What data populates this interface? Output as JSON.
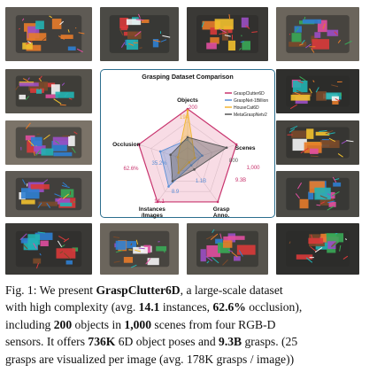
{
  "radar": {
    "title": "Grasping Dataset Comparison",
    "axes": [
      "Objects",
      "Scenes",
      "Grasp\nAnno.",
      "Instances\n/Images",
      "Occlusion"
    ],
    "legend": [
      {
        "name": "GraspClutter6D",
        "color": "#c8346e"
      },
      {
        "name": "GraspNet-1Billion",
        "color": "#5b8fd6"
      },
      {
        "name": "HouseCat6D",
        "color": "#f2b632"
      },
      {
        "name": "MetaGraspNetv2",
        "color": "#555555"
      }
    ],
    "value_labels": [
      {
        "text": "200",
        "color": "#c8346e"
      },
      {
        "text": "194",
        "color": "#f2b632"
      },
      {
        "text": "1,000",
        "color": "#c8346e"
      },
      {
        "text": "800",
        "color": "#555555"
      },
      {
        "text": "1.1B",
        "color": "#5b8fd6"
      },
      {
        "text": "9.3B",
        "color": "#c8346e"
      },
      {
        "text": "14.1",
        "color": "#c8346e"
      },
      {
        "text": "8.9",
        "color": "#5b8fd6"
      },
      {
        "text": "62.6%",
        "color": "#c8346e"
      },
      {
        "text": "35.2%",
        "color": "#5b8fd6"
      }
    ]
  },
  "chart_data": {
    "type": "radar",
    "title": "Grasping Dataset Comparison",
    "axes": [
      "Objects",
      "Scenes",
      "Grasp Anno.",
      "Instances /Images",
      "Occlusion"
    ],
    "series": [
      {
        "name": "GraspClutter6D",
        "values": [
          1.0,
          1.0,
          1.0,
          1.0,
          1.0
        ]
      },
      {
        "name": "GraspNet-1Billion",
        "values": [
          0.4,
          0.3,
          0.12,
          0.63,
          0.56
        ]
      },
      {
        "name": "HouseCat6D",
        "values": [
          0.97,
          0.15,
          0.05,
          0.3,
          0.2
        ]
      },
      {
        "name": "MetaGraspNetv2",
        "values": [
          0.45,
          0.8,
          0.22,
          0.5,
          0.35
        ]
      }
    ]
  },
  "caption": {
    "l1a": "Fig. 1: We present ",
    "l1b": "GraspClutter6D",
    "l1c": ", a large-scale dataset",
    "l2a": "with high complexity (avg. ",
    "l2b": "14.1",
    "l2c": " instances, ",
    "l2d": "62.6%",
    "l2e": " occlusion),",
    "l3a": "including ",
    "l3b": "200",
    "l3c": " objects in ",
    "l3d": "1,000",
    "l3e": " scenes from four RGB-D",
    "l4a": "sensors. It offers ",
    "l4b": "736K",
    "l4c": " 6D object poses and ",
    "l4d": "9.3B",
    "l4e": " grasps. (25",
    "l5": "grasps are visualized per image (avg. 178K grasps / image))"
  }
}
